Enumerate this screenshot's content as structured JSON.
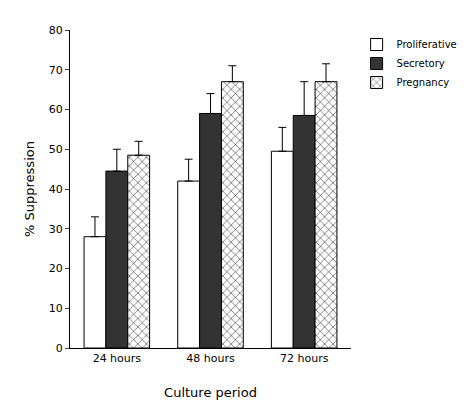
{
  "chart_data": {
    "type": "bar",
    "x_label": "Culture period",
    "y_label": "% Suppression",
    "categories": [
      "24 hours",
      "48 hours",
      "72 hours"
    ],
    "series": [
      {
        "name": "Proliferative",
        "color": "#ffffff",
        "values": [
          28,
          42,
          49.5
        ],
        "errors": [
          5,
          5.5,
          6
        ]
      },
      {
        "name": "Secretory",
        "color": "#333333",
        "values": [
          44.5,
          59,
          58.5
        ],
        "errors": [
          5.5,
          5,
          8.5
        ]
      },
      {
        "name": "Pregnancy",
        "color": "#ffffff",
        "marker": "crosshatch",
        "values": [
          48.5,
          67,
          67
        ],
        "errors": [
          3.5,
          4,
          4.5
        ]
      }
    ],
    "ylim": [
      0,
      80
    ],
    "yticks": [
      0,
      10,
      20,
      30,
      40,
      50,
      60,
      70,
      80
    ],
    "grid": false,
    "legend": "upper right"
  }
}
